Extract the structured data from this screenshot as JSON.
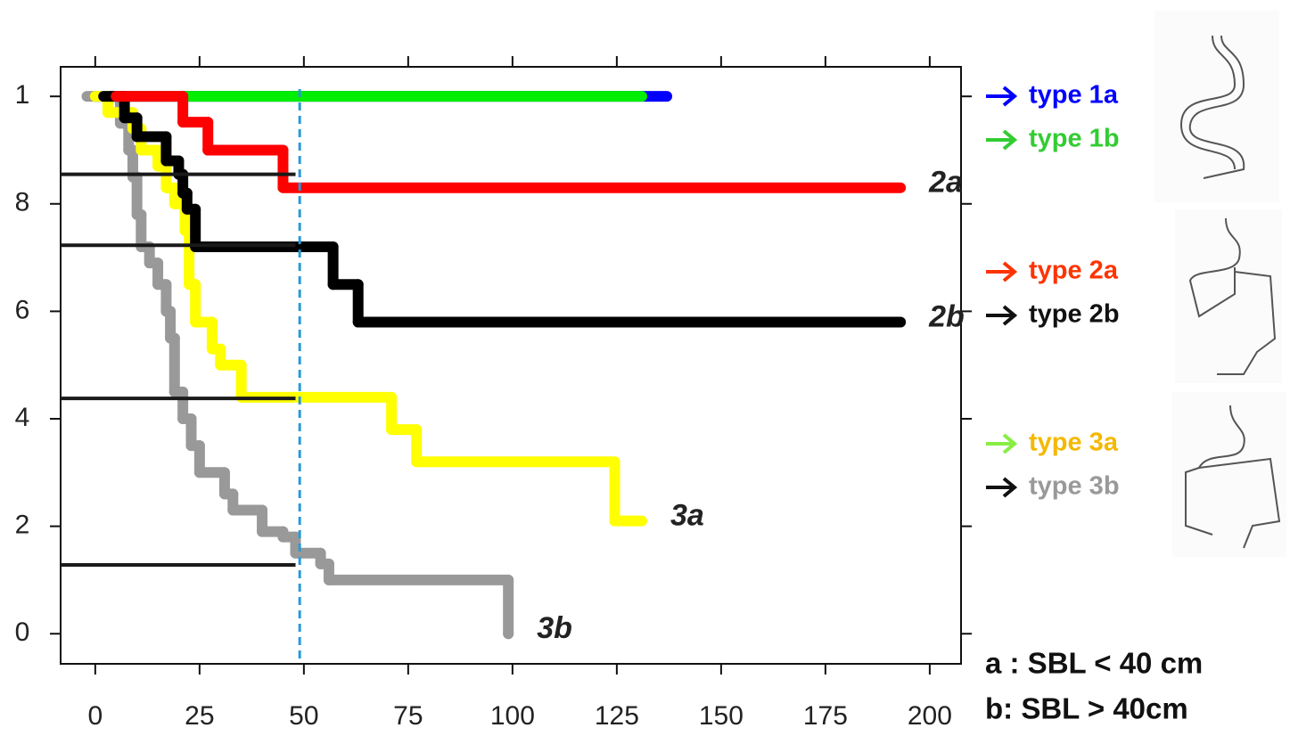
{
  "chart_data": {
    "type": "step",
    "xlim": [
      -8.3,
      207.5
    ],
    "xticks": [
      0,
      25,
      50,
      75,
      100,
      125,
      150,
      175,
      200
    ],
    "ylim": [
      -0.056,
      1.055
    ],
    "yticks": [
      0,
      {
        "value": 0.2,
        "label": "2"
      },
      {
        "value": 0.4,
        "label": "4"
      },
      {
        "value": 0.6,
        "label": "6"
      },
      {
        "value": 0.8,
        "label": "8"
      },
      1
    ],
    "series": [
      {
        "name": "type 1a",
        "color": "#0000ff",
        "legend_color": "#0000ff",
        "arrow_color": "#0000ff",
        "x_edges": [
          0,
          137
        ],
        "values": [
          1
        ]
      },
      {
        "name": "type 1b",
        "color": "#00ee00",
        "legend_color": "#33cc33",
        "arrow_color": "#33cc33",
        "x_edges": [
          0,
          131
        ],
        "values": [
          1
        ]
      },
      {
        "name": "type 3b",
        "color": "#999999",
        "legend_color": "#999999",
        "arrow_color": "#111111",
        "end_label": "3b",
        "x_edges": [
          -2,
          6,
          8,
          9,
          10,
          11,
          13,
          15,
          17,
          18,
          19,
          21,
          23,
          25,
          31,
          33,
          40,
          45,
          48,
          54,
          56,
          99,
          99
        ],
        "values": [
          1,
          0.95,
          0.9,
          0.85,
          0.78,
          0.72,
          0.69,
          0.65,
          0.6,
          0.55,
          0.45,
          0.4,
          0.35,
          0.3,
          0.26,
          0.23,
          0.19,
          0.18,
          0.15,
          0.13,
          0.1,
          0.0
        ]
      },
      {
        "name": "type 3a",
        "color": "#ffff00",
        "legend_color": "#f5b800",
        "arrow_color": "#88ee44",
        "end_label": "3a",
        "x_edges": [
          0,
          3,
          9,
          11,
          15,
          17,
          19,
          21.5,
          22.5,
          24,
          28,
          30,
          35,
          71,
          77,
          124.5,
          131
        ],
        "values": [
          1,
          0.97,
          0.94,
          0.9,
          0.87,
          0.83,
          0.8,
          0.75,
          0.65,
          0.58,
          0.53,
          0.5,
          0.44,
          0.38,
          0.32,
          0.21
        ]
      },
      {
        "name": "type 2b",
        "color": "#000000",
        "legend_color": "#111111",
        "arrow_color": "#111111",
        "end_label": "2b",
        "x_edges": [
          2,
          7,
          10,
          17,
          20,
          21,
          22,
          24,
          57,
          63,
          193
        ],
        "values": [
          1,
          0.96,
          0.925,
          0.88,
          0.855,
          0.82,
          0.79,
          0.72,
          0.65,
          0.58
        ]
      },
      {
        "name": "type 2a",
        "color": "#ff0000",
        "legend_color": "#ff3300",
        "arrow_color": "#ff3300",
        "end_label": "2a",
        "x_edges": [
          5,
          21,
          27,
          45,
          193
        ],
        "values": [
          1,
          0.952,
          0.9,
          0.83
        ]
      }
    ],
    "legend_order": [
      0,
      1,
      5,
      4,
      3,
      2
    ],
    "reference_lines": {
      "y": [
        0.855,
        0.723,
        0.438,
        0.128
      ],
      "x_end": 48
    },
    "vline": 49,
    "notes": [
      "a : SBL < 40 cm",
      "b:  SBL > 40cm"
    ]
  }
}
